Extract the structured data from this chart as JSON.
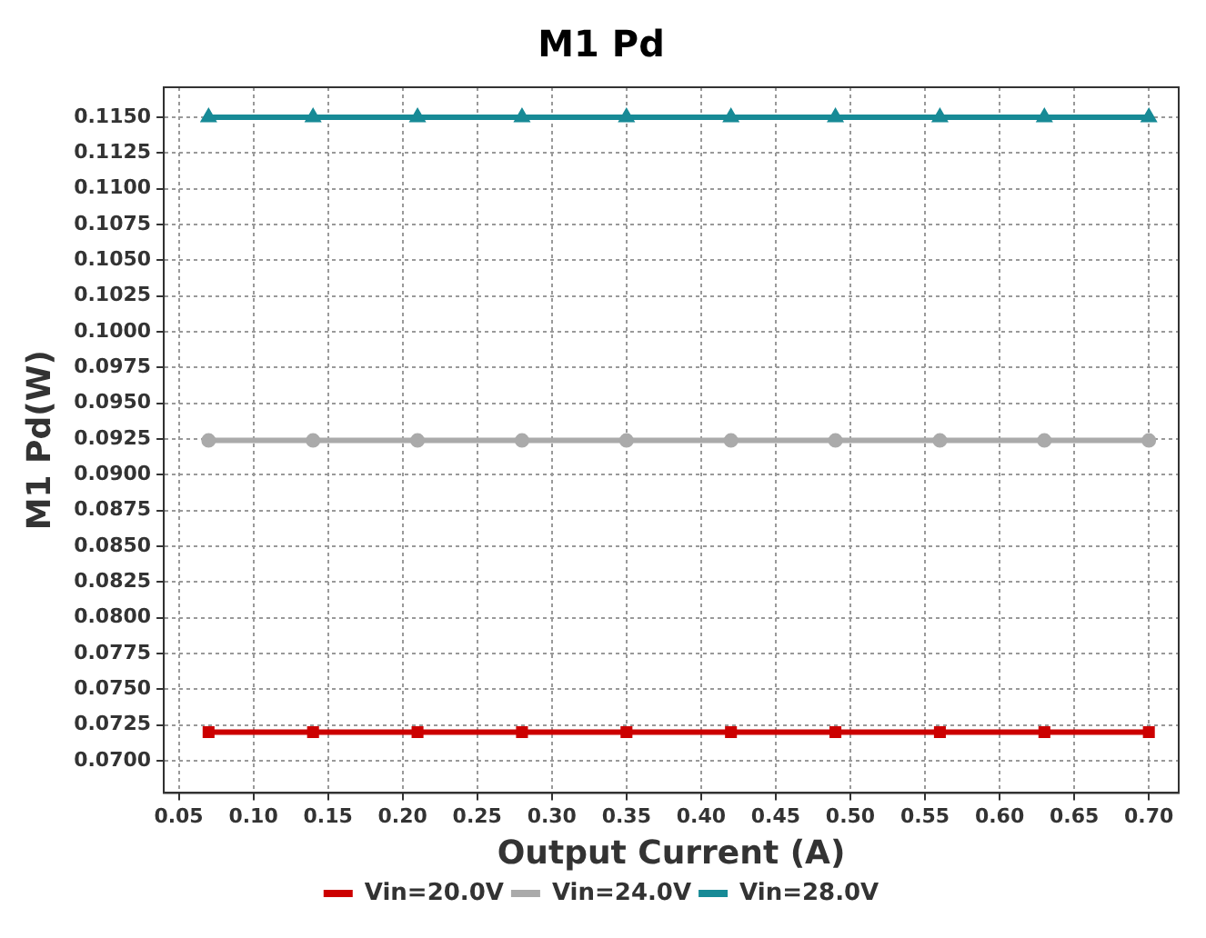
{
  "chart_data": {
    "type": "line",
    "title": "M1 Pd",
    "xlabel": "Output Current (A)",
    "ylabel": "M1 Pd(W)",
    "x": [
      0.07,
      0.14,
      0.21,
      0.28,
      0.35,
      0.42,
      0.49,
      0.56,
      0.63,
      0.7
    ],
    "series": [
      {
        "name": "Vin=20.0V",
        "color": "#cc0000",
        "marker": "square",
        "values": [
          0.072,
          0.072,
          0.072,
          0.072,
          0.072,
          0.072,
          0.072,
          0.072,
          0.072,
          0.072
        ]
      },
      {
        "name": "Vin=24.0V",
        "color": "#aaaaaa",
        "marker": "circle",
        "values": [
          0.0924,
          0.0924,
          0.0924,
          0.0924,
          0.0924,
          0.0924,
          0.0924,
          0.0924,
          0.0924,
          0.0924
        ]
      },
      {
        "name": "Vin=28.0V",
        "color": "#178a96",
        "marker": "triangle",
        "values": [
          0.115,
          0.115,
          0.115,
          0.115,
          0.115,
          0.115,
          0.115,
          0.115,
          0.115,
          0.115
        ]
      }
    ],
    "xlim": [
      0.04,
      0.72
    ],
    "xticks": [
      {
        "value": 0.05,
        "label": "0.05"
      },
      {
        "value": 0.1,
        "label": "0.10"
      },
      {
        "value": 0.15,
        "label": "0.15"
      },
      {
        "value": 0.2,
        "label": "0.20"
      },
      {
        "value": 0.25,
        "label": "0.25"
      },
      {
        "value": 0.3,
        "label": "0.30"
      },
      {
        "value": 0.35,
        "label": "0.35"
      },
      {
        "value": 0.4,
        "label": "0.40"
      },
      {
        "value": 0.45,
        "label": "0.45"
      },
      {
        "value": 0.5,
        "label": "0.50"
      },
      {
        "value": 0.55,
        "label": "0.55"
      },
      {
        "value": 0.6,
        "label": "0.60"
      },
      {
        "value": 0.65,
        "label": "0.65"
      },
      {
        "value": 0.7,
        "label": "0.70"
      }
    ],
    "ylim": [
      0.06775,
      0.1171
    ],
    "yticks": [
      {
        "value": 0.07,
        "label": "0.0700"
      },
      {
        "value": 0.0725,
        "label": "0.0725"
      },
      {
        "value": 0.075,
        "label": "0.0750"
      },
      {
        "value": 0.0775,
        "label": "0.0775"
      },
      {
        "value": 0.08,
        "label": "0.0800"
      },
      {
        "value": 0.0825,
        "label": "0.0825"
      },
      {
        "value": 0.085,
        "label": "0.0850"
      },
      {
        "value": 0.0875,
        "label": "0.0875"
      },
      {
        "value": 0.09,
        "label": "0.0900"
      },
      {
        "value": 0.0925,
        "label": "0.0925"
      },
      {
        "value": 0.095,
        "label": "0.0950"
      },
      {
        "value": 0.0975,
        "label": "0.0975"
      },
      {
        "value": 0.1,
        "label": "0.1000"
      },
      {
        "value": 0.1025,
        "label": "0.1025"
      },
      {
        "value": 0.105,
        "label": "0.1050"
      },
      {
        "value": 0.1075,
        "label": "0.1075"
      },
      {
        "value": 0.11,
        "label": "0.1100"
      },
      {
        "value": 0.1125,
        "label": "0.1125"
      },
      {
        "value": 0.115,
        "label": "0.1150"
      }
    ],
    "grid": true,
    "legend": "bottom",
    "line_style": "solid"
  }
}
